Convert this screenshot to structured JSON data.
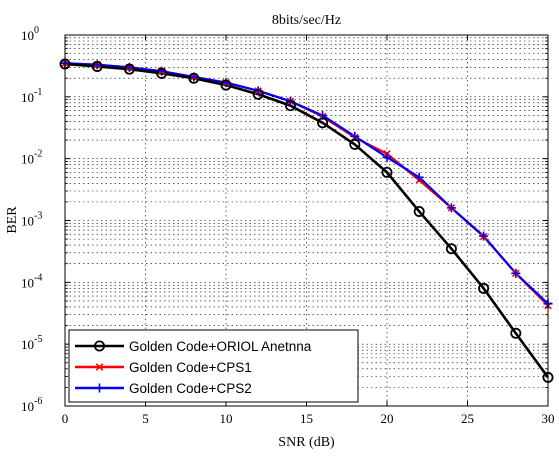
{
  "chart_data": {
    "type": "line",
    "title": "8bits/sec/Hz",
    "xlabel": "SNR (dB)",
    "ylabel": "BER",
    "xlim": [
      0,
      30
    ],
    "ylim": [
      1e-06,
      1
    ],
    "yscale": "log",
    "grid": true,
    "legend_position": "bottom-left",
    "x_ticks": [
      0,
      5,
      10,
      15,
      20,
      25,
      30
    ],
    "x_tick_labels": [
      "0",
      "5",
      "10",
      "15",
      "20",
      "25",
      "30"
    ],
    "y_ticks": [
      {
        "value": 1,
        "exp": "0"
      },
      {
        "value": 0.1,
        "exp": "-1"
      },
      {
        "value": 0.01,
        "exp": "-2"
      },
      {
        "value": 0.001,
        "exp": "-3"
      },
      {
        "value": 0.0001,
        "exp": "-4"
      },
      {
        "value": 1e-05,
        "exp": "-5"
      },
      {
        "value": 1e-06,
        "exp": "-6"
      }
    ],
    "y_tick_base": "10",
    "x": [
      0,
      2,
      4,
      6,
      8,
      10,
      12,
      14,
      16,
      18,
      20,
      22,
      24,
      26,
      28,
      30
    ],
    "series": [
      {
        "name": "Golden Code+ORIOL Anetnna",
        "color": "#000000",
        "marker": "circle",
        "values": [
          0.34,
          0.31,
          0.28,
          0.24,
          0.2,
          0.155,
          0.11,
          0.072,
          0.038,
          0.017,
          0.006,
          0.0014,
          0.00035,
          8e-05,
          1.5e-05,
          2.9e-06
        ]
      },
      {
        "name": "Golden Code+CPS1",
        "color": "#ff0000",
        "marker": "x",
        "values": [
          0.35,
          0.33,
          0.3,
          0.26,
          0.21,
          0.17,
          0.125,
          0.085,
          0.048,
          0.022,
          0.012,
          0.0045,
          0.0016,
          0.00055,
          0.00014,
          4.2e-05
        ]
      },
      {
        "name": "Golden Code+CPS2",
        "color": "#0000ff",
        "marker": "plus",
        "values": [
          0.35,
          0.33,
          0.3,
          0.26,
          0.21,
          0.17,
          0.125,
          0.085,
          0.05,
          0.023,
          0.0105,
          0.005,
          0.0016,
          0.00056,
          0.00014,
          4.5e-05
        ]
      }
    ]
  }
}
